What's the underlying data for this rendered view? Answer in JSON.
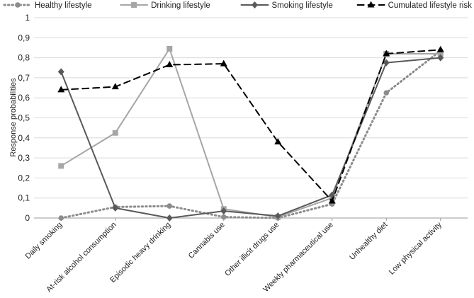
{
  "chart_data": {
    "type": "line",
    "title": "",
    "xlabel": "",
    "ylabel": "Response probabilities",
    "ylim": [
      0,
      1
    ],
    "yticks": [
      "0",
      "0,1",
      "0,2",
      "0,3",
      "0,4",
      "0,5",
      "0,6",
      "0,7",
      "0,8",
      "0,9",
      "1"
    ],
    "grid": "horizontal",
    "legend_position": "top",
    "categories": [
      "Daily smoking",
      "At-risk alcohol consumption",
      "Episodic heavy drinking",
      "Cannabis use",
      "Other illicit drugs use",
      "Weekly pharmaceutical use",
      "Unhealthy diet",
      "Low physical activity"
    ],
    "series": [
      {
        "name": "Healthy lifestyle",
        "values": [
          0.0,
          0.055,
          0.06,
          0.005,
          0.0,
          0.07,
          0.625,
          0.835
        ],
        "color": "#8c8c8c",
        "style": "dotted",
        "marker": "circle"
      },
      {
        "name": "Drinking lifestyle",
        "values": [
          0.26,
          0.425,
          0.845,
          0.045,
          0.005,
          0.1,
          0.82,
          0.82
        ],
        "color": "#a6a6a6",
        "style": "solid",
        "marker": "square"
      },
      {
        "name": "Smoking lifestyle",
        "values": [
          0.73,
          0.05,
          0.0,
          0.035,
          0.01,
          0.115,
          0.775,
          0.8
        ],
        "color": "#595959",
        "style": "solid",
        "marker": "diamond"
      },
      {
        "name": "Cumulated lifestyle risk factors",
        "values": [
          0.64,
          0.655,
          0.765,
          0.77,
          0.38,
          0.085,
          0.82,
          0.84
        ],
        "color": "#000000",
        "style": "dashed",
        "marker": "triangle"
      }
    ]
  }
}
